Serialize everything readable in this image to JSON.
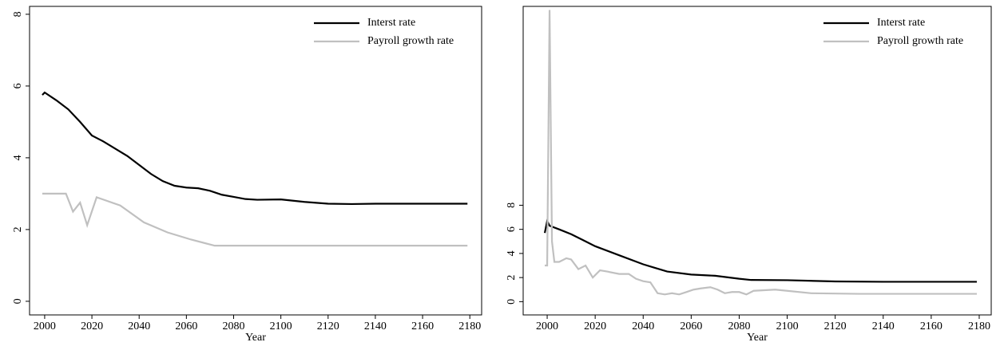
{
  "chart_data": [
    {
      "type": "line",
      "xlabel": "Year",
      "xlim": [
        1993.6,
        2185
      ],
      "ylim": [
        -0.38,
        8.22
      ],
      "xticks": [
        2000,
        2020,
        2040,
        2060,
        2080,
        2100,
        2120,
        2140,
        2160,
        2180
      ],
      "yticks": [
        0,
        2,
        4,
        6,
        8
      ],
      "legend": "top right",
      "series": [
        {
          "name": "Interst rate",
          "color": "#000000",
          "x": [
            1999,
            2000,
            2005,
            2010,
            2015,
            2020,
            2025,
            2030,
            2035,
            2040,
            2045,
            2050,
            2055,
            2060,
            2065,
            2070,
            2075,
            2080,
            2085,
            2090,
            2100,
            2110,
            2120,
            2130,
            2140,
            2150,
            2160,
            2170,
            2179
          ],
          "values": [
            5.75,
            5.82,
            5.6,
            5.35,
            5.0,
            4.62,
            4.45,
            4.25,
            4.05,
            3.8,
            3.55,
            3.35,
            3.22,
            3.17,
            3.15,
            3.08,
            2.97,
            2.91,
            2.85,
            2.83,
            2.84,
            2.77,
            2.72,
            2.71,
            2.72,
            2.72,
            2.72,
            2.72,
            2.72
          ]
        },
        {
          "name": "Payroll growth rate",
          "color": "#c0c0c0",
          "x": [
            1999,
            2009,
            2012,
            2015,
            2018,
            2022,
            2032,
            2042,
            2052,
            2062,
            2072,
            2179
          ],
          "values": [
            3.0,
            3.0,
            2.5,
            2.75,
            2.12,
            2.9,
            2.67,
            2.2,
            1.92,
            1.72,
            1.55,
            1.55
          ]
        }
      ]
    },
    {
      "type": "line",
      "xlabel": "Year",
      "xlim": [
        1990,
        2185
      ],
      "ylim": [
        -1.1,
        24.5
      ],
      "xticks": [
        2000,
        2020,
        2040,
        2060,
        2080,
        2100,
        2120,
        2140,
        2160,
        2180
      ],
      "yticks": [
        0,
        2,
        4,
        6,
        8
      ],
      "legend": "top right",
      "series": [
        {
          "name": "Interst rate",
          "color": "#000000",
          "x": [
            1999,
            2000,
            2001,
            2005,
            2010,
            2015,
            2020,
            2030,
            2040,
            2045,
            2050,
            2060,
            2070,
            2080,
            2085,
            2100,
            2120,
            2140,
            2179
          ],
          "values": [
            5.7,
            6.7,
            6.3,
            6.0,
            5.6,
            5.1,
            4.6,
            3.85,
            3.1,
            2.8,
            2.5,
            2.25,
            2.15,
            1.9,
            1.8,
            1.78,
            1.68,
            1.65,
            1.65
          ]
        },
        {
          "name": "Payroll growth rate",
          "color": "#c0c0c0",
          "x": [
            1999,
            2000,
            2001,
            2002,
            2003,
            2005,
            2008,
            2010,
            2013,
            2016,
            2019,
            2022,
            2025,
            2030,
            2034,
            2037,
            2040,
            2043,
            2046,
            2049,
            2052,
            2055,
            2058,
            2061,
            2064,
            2068,
            2071,
            2074,
            2077,
            2080,
            2083,
            2086,
            2095,
            2100,
            2110,
            2130,
            2179
          ],
          "values": [
            3.0,
            3.0,
            24.2,
            5.0,
            3.3,
            3.3,
            3.6,
            3.5,
            2.7,
            3.0,
            2.0,
            2.6,
            2.5,
            2.3,
            2.3,
            1.9,
            1.7,
            1.6,
            0.7,
            0.6,
            0.7,
            0.6,
            0.8,
            1.0,
            1.1,
            1.2,
            1.0,
            0.7,
            0.8,
            0.8,
            0.6,
            0.9,
            1.0,
            0.9,
            0.7,
            0.65,
            0.65
          ]
        }
      ]
    }
  ]
}
